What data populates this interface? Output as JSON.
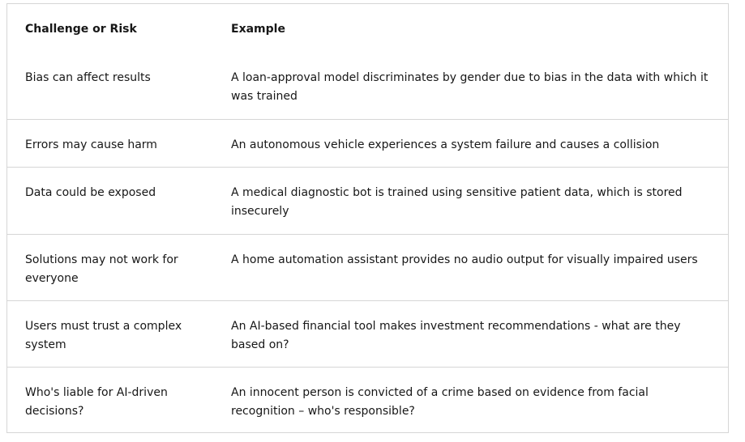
{
  "table": {
    "headers": [
      "Challenge or Risk",
      "Example"
    ],
    "rows": [
      [
        "Bias can affect results",
        "A loan-approval model discriminates by gender due to bias in the data with which it was trained"
      ],
      [
        "Errors may cause harm",
        "An autonomous vehicle experiences a system failure and causes a collision"
      ],
      [
        "Data could be exposed",
        "A medical diagnostic bot is trained using sensitive patient data, which is stored insecurely"
      ],
      [
        "Solutions may not work for everyone",
        "A home automation assistant provides no audio output for visually impaired users"
      ],
      [
        "Users must trust a complex system",
        "An AI-based financial tool makes investment recommendations - what are they based on?"
      ],
      [
        "Who's liable for AI-driven decisions?",
        "An innocent person is convicted of a crime based on evidence from facial recognition – who's responsible?"
      ]
    ]
  }
}
